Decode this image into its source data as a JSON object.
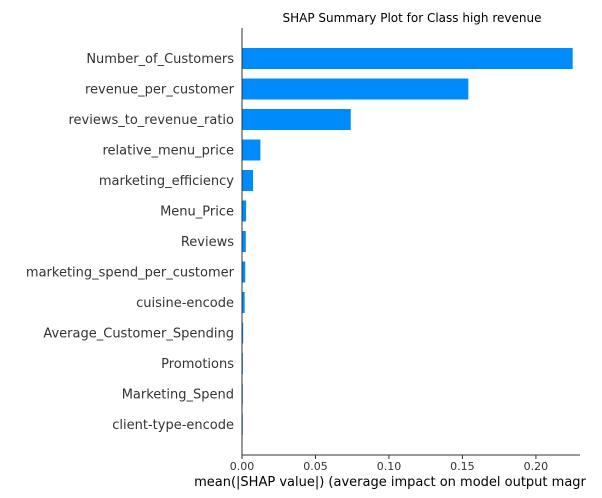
{
  "chart_data": {
    "type": "bar",
    "orientation": "horizontal",
    "title": "SHAP Summary Plot for Class high revenue",
    "xlabel": "mean(|SHAP value|) (average impact on model output magr",
    "ylabel": "",
    "xlim": [
      0,
      0.23
    ],
    "xticks": [
      0.0,
      0.05,
      0.1,
      0.15,
      0.2
    ],
    "xtick_labels": [
      "0.00",
      "0.05",
      "0.10",
      "0.15",
      "0.20"
    ],
    "grid": false,
    "categories": [
      "Number_of_Customers",
      "revenue_per_customer",
      "reviews_to_revenue_ratio",
      "relative_menu_price",
      "marketing_efficiency",
      "Menu_Price",
      "Reviews",
      "marketing_spend_per_customer",
      "cuisine-encode",
      "Average_Customer_Spending",
      "Promotions",
      "Marketing_Spend",
      "client-type-encode"
    ],
    "values": [
      0.225,
      0.154,
      0.074,
      0.0125,
      0.0075,
      0.0028,
      0.0026,
      0.0022,
      0.0018,
      0.0008,
      0.0006,
      0.0005,
      0.0004
    ],
    "bar_color": "#008bfb"
  }
}
